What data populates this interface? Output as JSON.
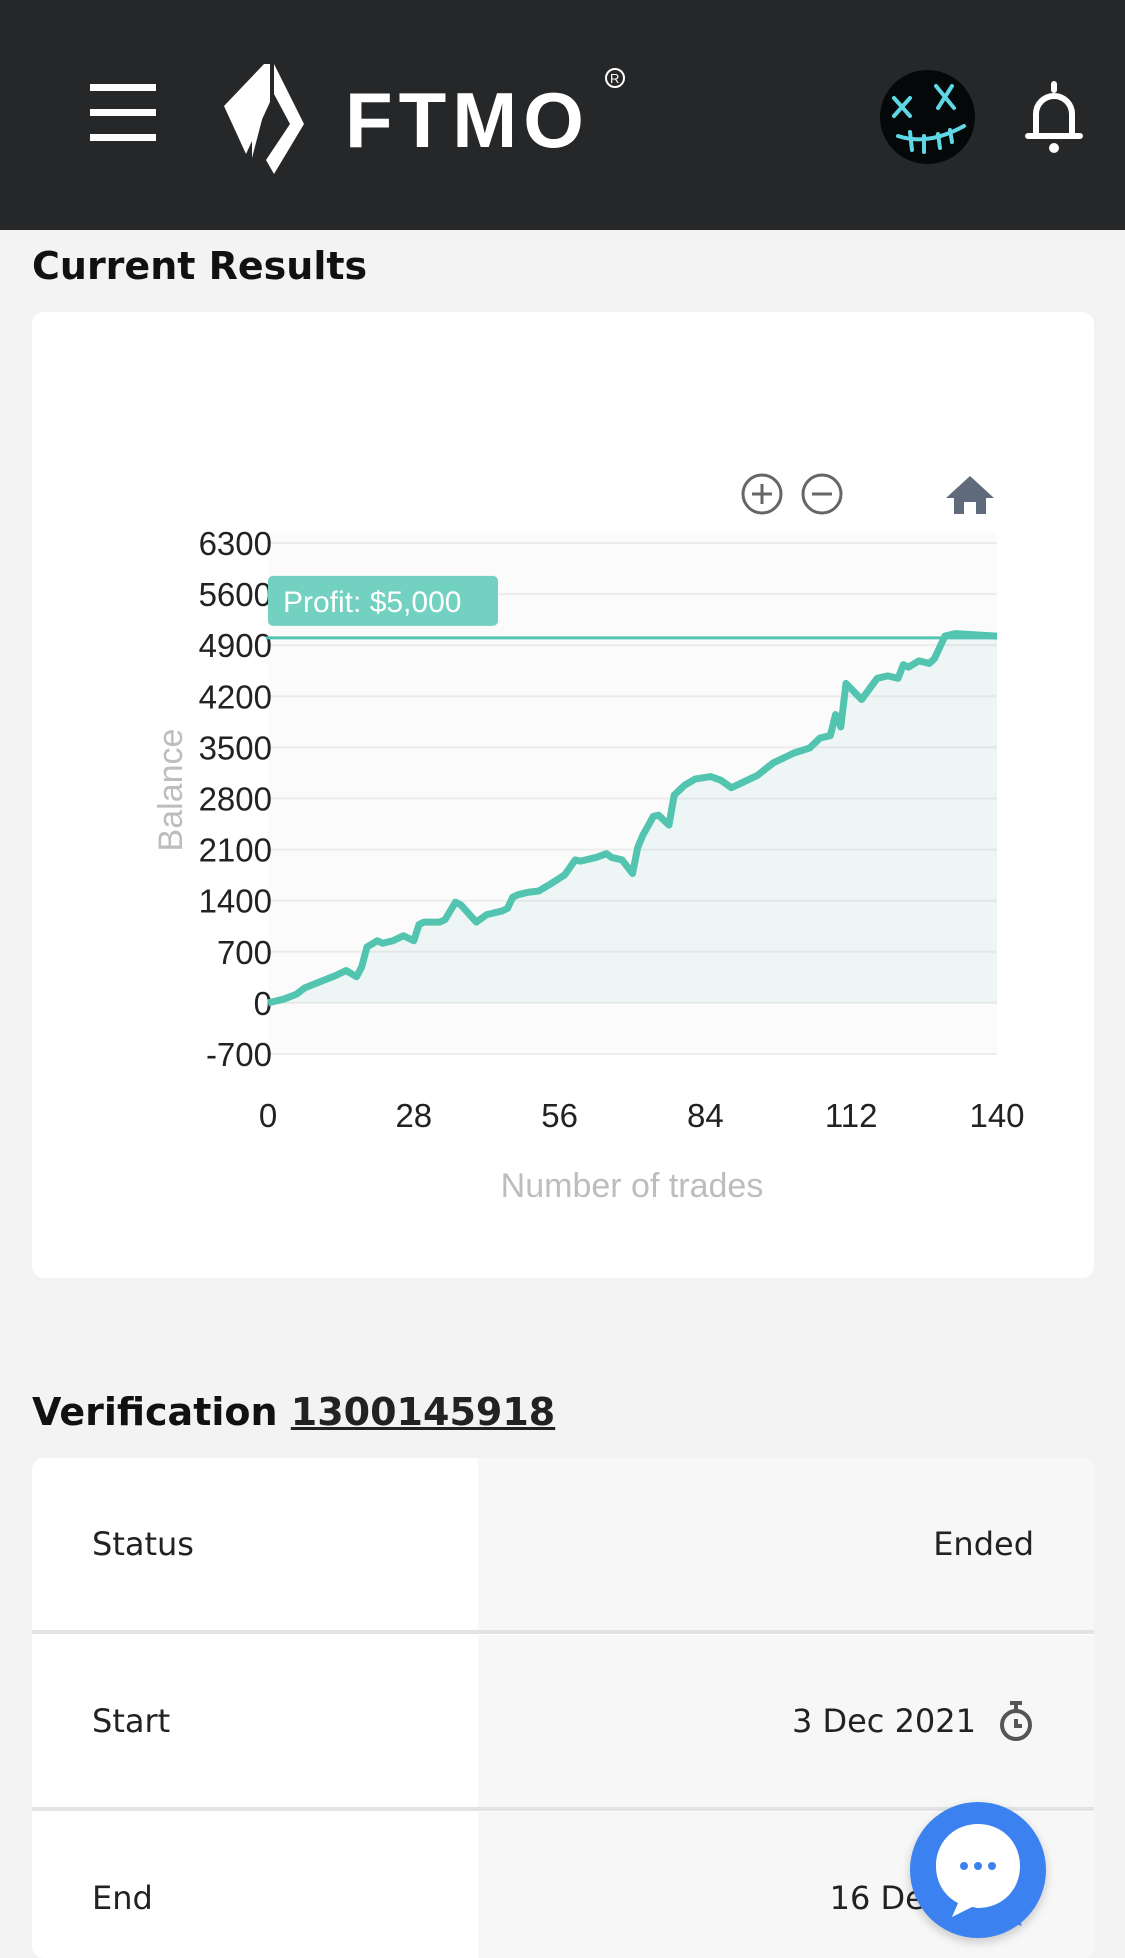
{
  "header": {
    "brand": "FTMO",
    "registered": "®"
  },
  "current_results": {
    "title": "Current Results"
  },
  "chart_data": {
    "type": "area",
    "xlabel": "Number of trades",
    "ylabel": "Balance",
    "xlim": [
      0,
      140
    ],
    "ylim": [
      -700,
      6300
    ],
    "xticks": [
      0,
      28,
      56,
      84,
      112,
      140
    ],
    "yticks": [
      6300,
      5600,
      4900,
      4200,
      3500,
      2800,
      2100,
      1400,
      700,
      0,
      -700
    ],
    "grid": true,
    "line_color": "#52c4b0",
    "target": {
      "value": 5000,
      "label": "Profit: $5,000"
    },
    "x": [
      0,
      3,
      5.5,
      7,
      10,
      13,
      15,
      17,
      18,
      19,
      21,
      22,
      24,
      26,
      28,
      29,
      30,
      33,
      34,
      36,
      37,
      40,
      42,
      45,
      46,
      47,
      48,
      50,
      52,
      54,
      57,
      59,
      60,
      63,
      65,
      66,
      68,
      70,
      71,
      72,
      74,
      75,
      77,
      78,
      80,
      82,
      85,
      87,
      89,
      92,
      94,
      97,
      99,
      101,
      104,
      106,
      108,
      109,
      110,
      111,
      114,
      117,
      119,
      121,
      122,
      123,
      125,
      127,
      128,
      130,
      132,
      140
    ],
    "y": [
      0,
      51,
      120,
      204,
      290,
      375,
      443,
      358,
      494,
      766,
      851,
      817,
      851,
      920,
      851,
      1073,
      1107,
      1107,
      1141,
      1380,
      1345,
      1107,
      1209,
      1260,
      1295,
      1448,
      1482,
      1516,
      1533,
      1618,
      1755,
      1959,
      1942,
      1993,
      2044,
      1993,
      1959,
      1772,
      2129,
      2299,
      2555,
      2572,
      2436,
      2845,
      2981,
      3066,
      3100,
      3049,
      2947,
      3049,
      3117,
      3287,
      3355,
      3423,
      3491,
      3628,
      3662,
      3951,
      3781,
      4377,
      4156,
      4446,
      4480,
      4446,
      4633,
      4599,
      4685,
      4650,
      4718,
      5025,
      5059,
      5025
    ]
  },
  "chart_toolbar": {
    "zoom_in": "zoom-in-icon",
    "zoom_out": "zoom-out-icon",
    "reset": "home-icon"
  },
  "verification": {
    "label": "Verification",
    "id": "1300145918",
    "rows": [
      {
        "label": "Status",
        "value": "Ended"
      },
      {
        "label": "Start",
        "value": "3 Dec 2021"
      },
      {
        "label": "End",
        "value": "16 Dec 2021"
      }
    ]
  }
}
